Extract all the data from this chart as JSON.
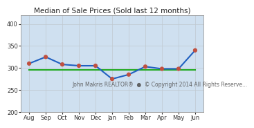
{
  "title": "Median of Sale Prices (Sold last 12 months)",
  "months": [
    "Aug",
    "Sep",
    "Oct",
    "Nov",
    "Dec",
    "Jan",
    "Feb",
    "Mar",
    "Apr",
    "May",
    "Jun"
  ],
  "blue_values": [
    310,
    325,
    308,
    305,
    305,
    275,
    285,
    303,
    298,
    298,
    340
  ],
  "green_values": [
    295,
    295,
    295,
    295,
    295,
    295,
    295,
    295,
    295,
    295,
    295
  ],
  "ylim": [
    200,
    420
  ],
  "yticks": [
    200,
    250,
    300,
    350,
    400
  ],
  "background_color": "#ffffff",
  "plot_bg_color": "#cfe0f0",
  "blue_line_color": "#2060c0",
  "green_line_color": "#22aa22",
  "marker_facecolor": "#c05040",
  "marker_size": 4.5,
  "line_width": 1.5,
  "title_fontsize": 7.5,
  "tick_fontsize": 6.0,
  "watermark_line1": "John Makris REALTOR®",
  "watermark_bullet": "  ●  ",
  "watermark_line2": "© Copyright 2014 All Rights Reserve...",
  "watermark_fontsize": 5.5,
  "grid_color": "#c0c8d0",
  "spine_color": "#999999"
}
